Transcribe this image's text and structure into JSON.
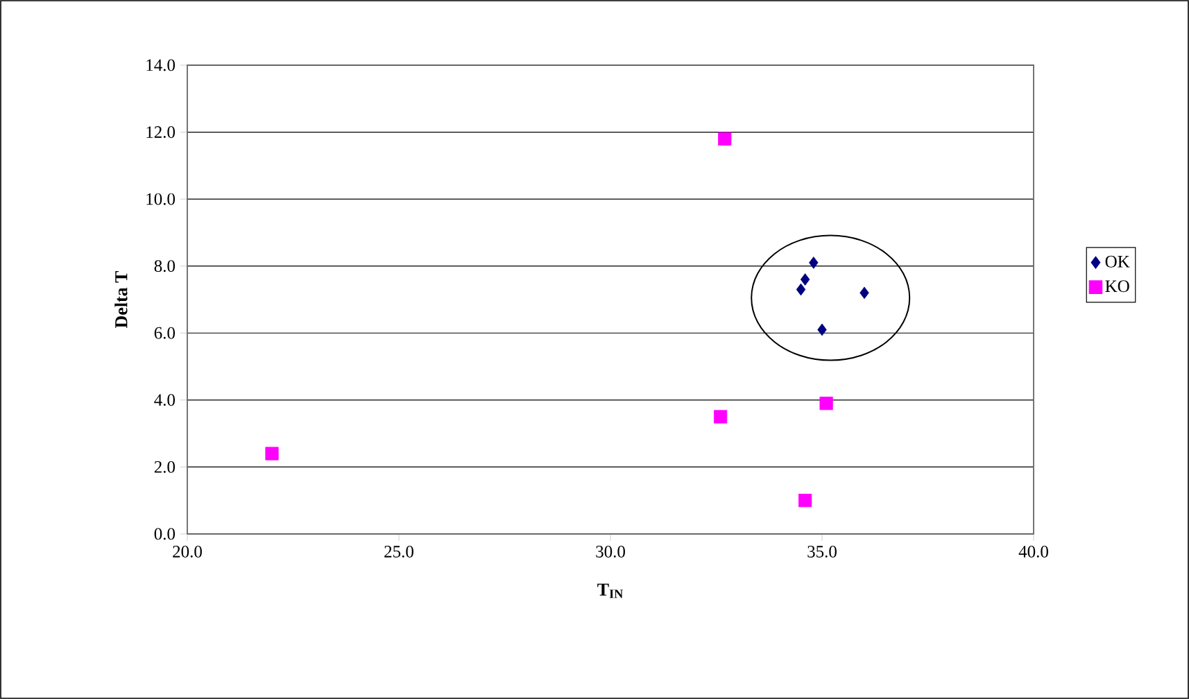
{
  "chart_data": {
    "type": "scatter",
    "xlabel": "T$_{IN}$",
    "ylabel": "Delta T",
    "xlim": [
      20,
      40
    ],
    "ylim": [
      0,
      14
    ],
    "xticks": [
      {
        "value": 20,
        "label": "20.0"
      },
      {
        "value": 25,
        "label": "25.0"
      },
      {
        "value": 30,
        "label": "30.0"
      },
      {
        "value": 35,
        "label": "35.0"
      },
      {
        "value": 40,
        "label": "40.0"
      }
    ],
    "yticks": [
      {
        "value": 0,
        "label": "0.0"
      },
      {
        "value": 2,
        "label": "2.0"
      },
      {
        "value": 4,
        "label": "4.0"
      },
      {
        "value": 6,
        "label": "6.0"
      },
      {
        "value": 8,
        "label": "8.0"
      },
      {
        "value": 10,
        "label": "10.0"
      },
      {
        "value": 12,
        "label": "12.0"
      },
      {
        "value": 14,
        "label": "14.0"
      }
    ],
    "grid": "y",
    "legend": "right",
    "series": [
      {
        "name": "OK",
        "color": "#000080",
        "marker": "diamond",
        "x": [
          34.8,
          34.6,
          34.5,
          36.0,
          35.0
        ],
        "values": [
          8.1,
          7.6,
          7.3,
          7.2,
          6.1
        ]
      },
      {
        "name": "KO",
        "color": "#ff00ff",
        "marker": "square",
        "x": [
          32.7,
          22.0,
          32.6,
          35.1,
          34.6
        ],
        "values": [
          11.8,
          2.4,
          3.5,
          3.9,
          1.0
        ]
      }
    ]
  }
}
